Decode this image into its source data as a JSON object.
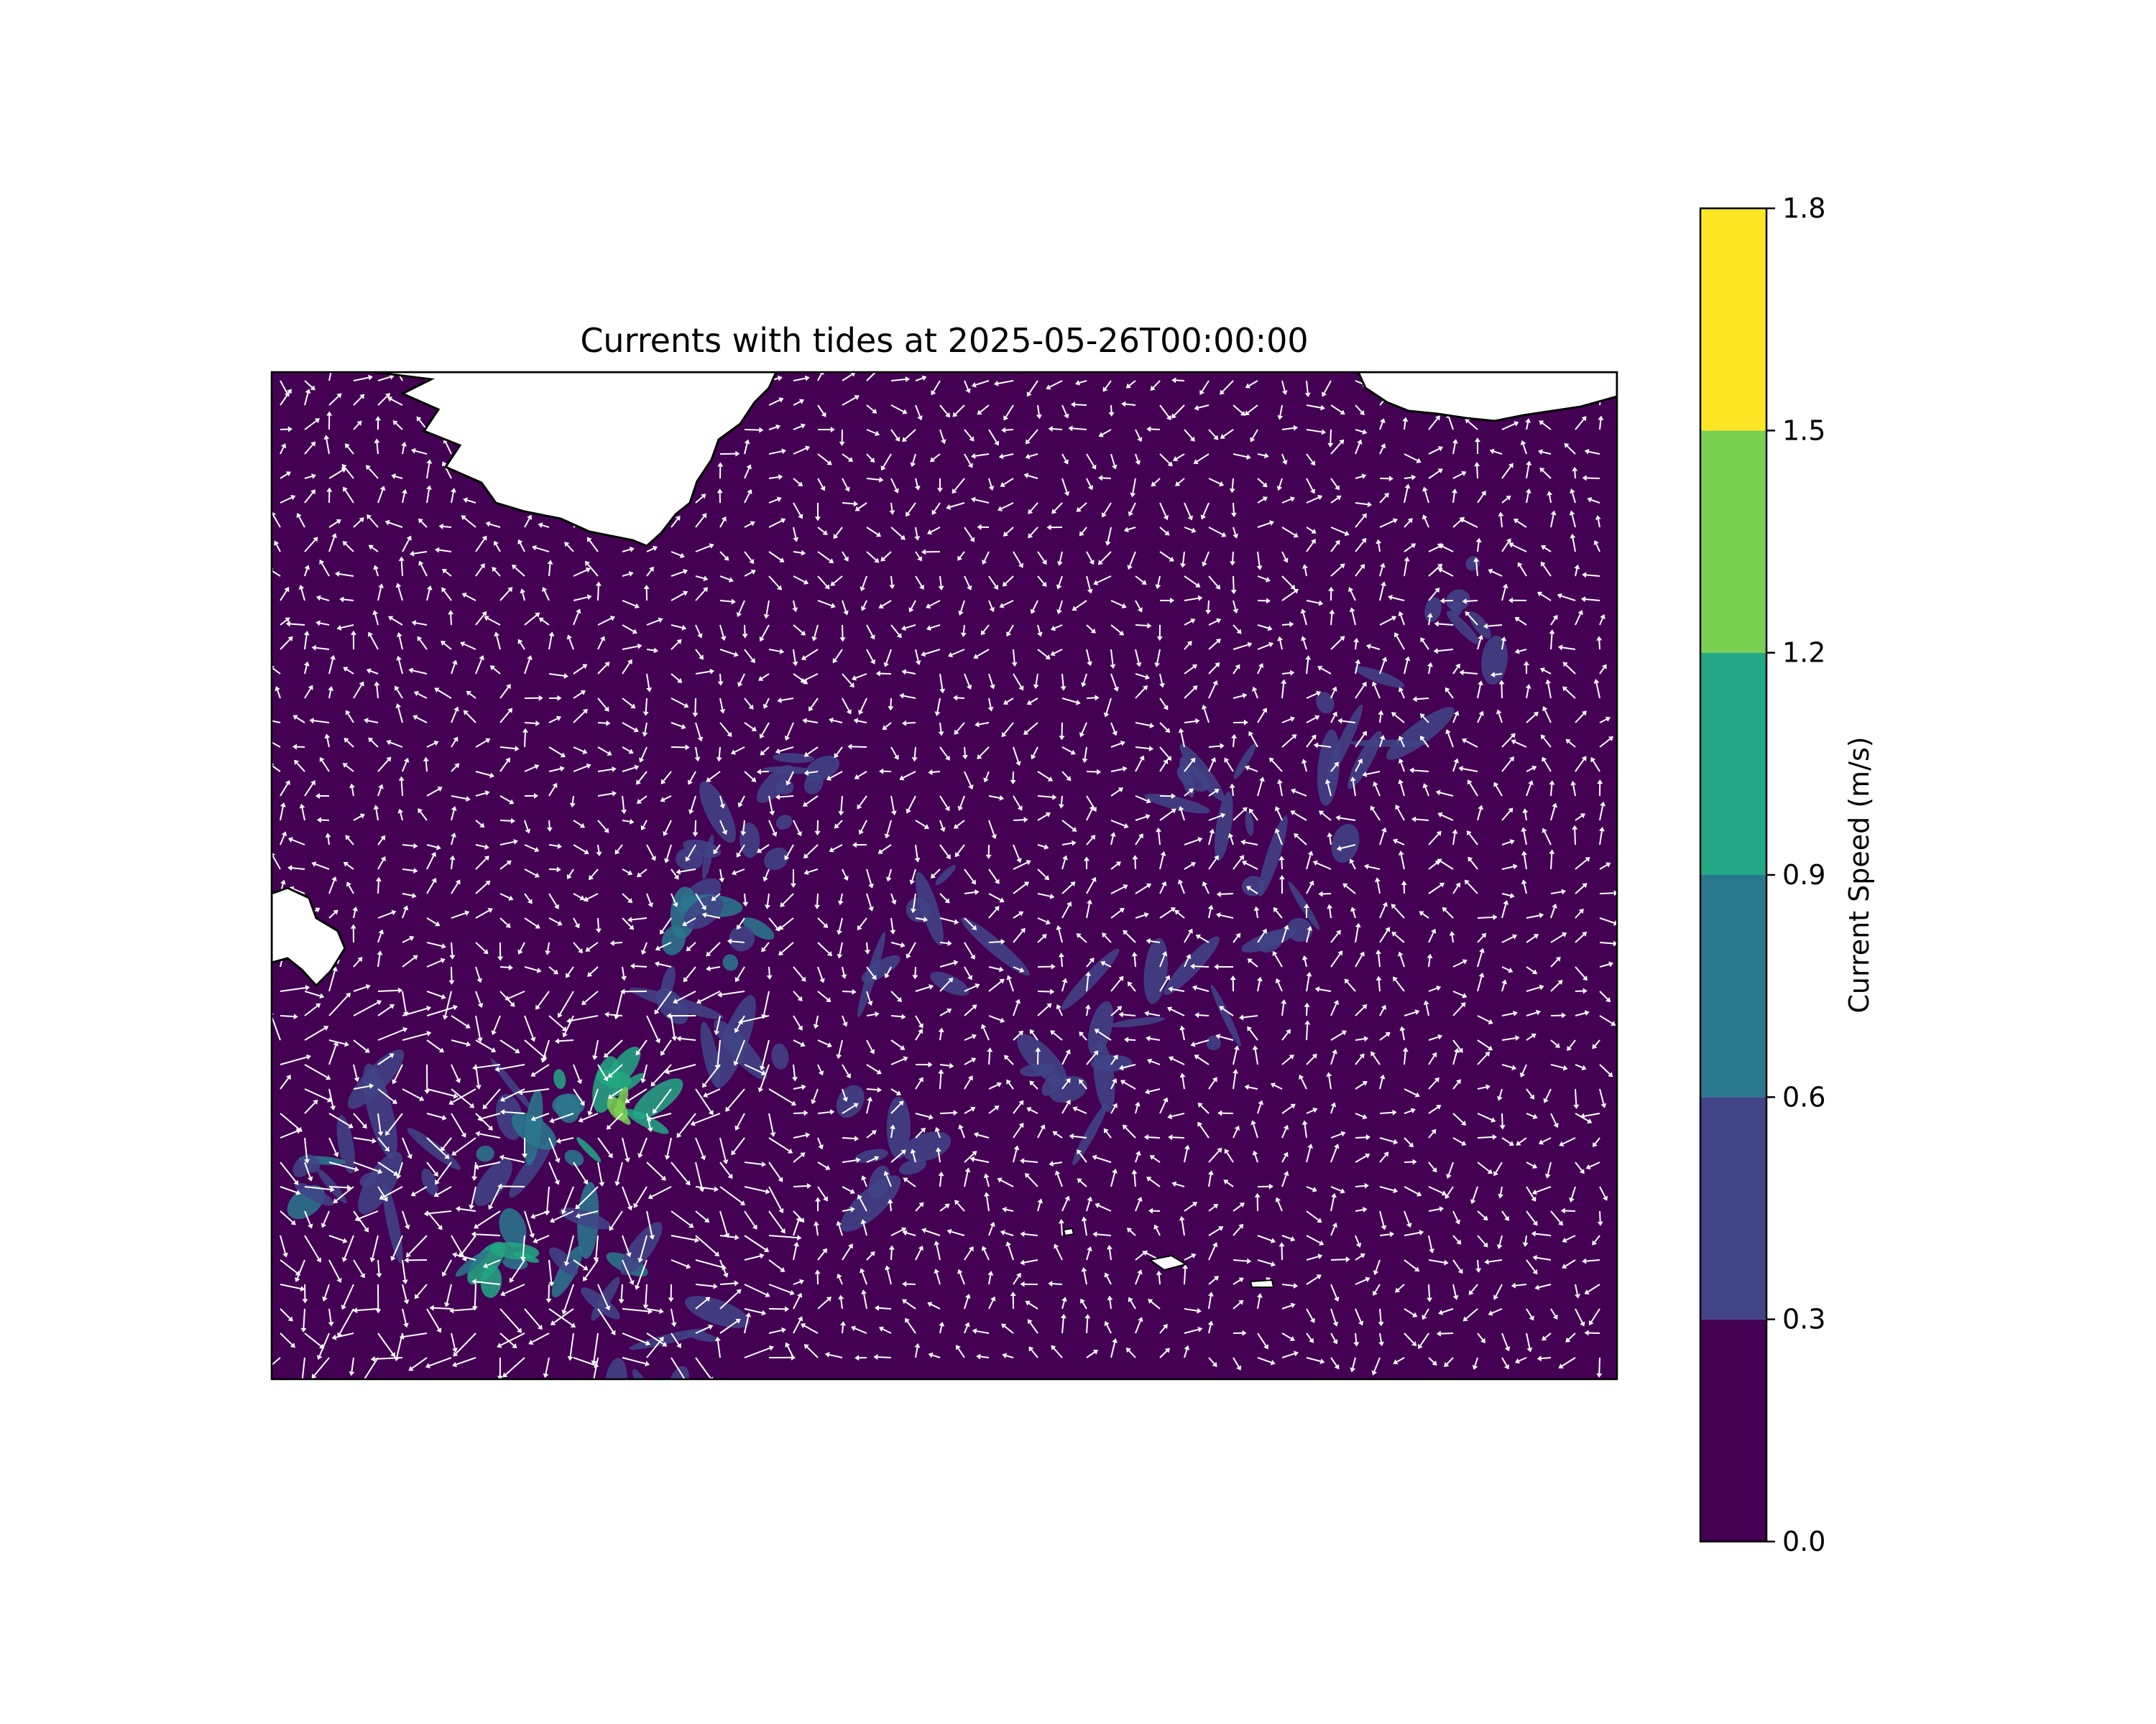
{
  "title": "Currents with tides at 2025-05-26T00:00:00",
  "colorbar": {
    "label": "Current Speed (m/s)",
    "ticks": [
      "0.0",
      "0.3",
      "0.6",
      "0.9",
      "1.2",
      "1.5",
      "1.8"
    ],
    "levels": [
      0.0,
      0.3,
      0.6,
      0.9,
      1.2,
      1.5,
      1.8
    ],
    "colors": [
      "#440154",
      "#414487",
      "#2a788e",
      "#22a884",
      "#7ad151",
      "#fde725"
    ]
  },
  "chart_data": {
    "type": "heatmap",
    "variable": "current speed with vector arrows",
    "units": "m/s",
    "value_range": [
      0.0,
      1.8
    ],
    "background_color": "#440154",
    "land_color": "#ffffff",
    "arrow_color": "#ffffff"
  }
}
